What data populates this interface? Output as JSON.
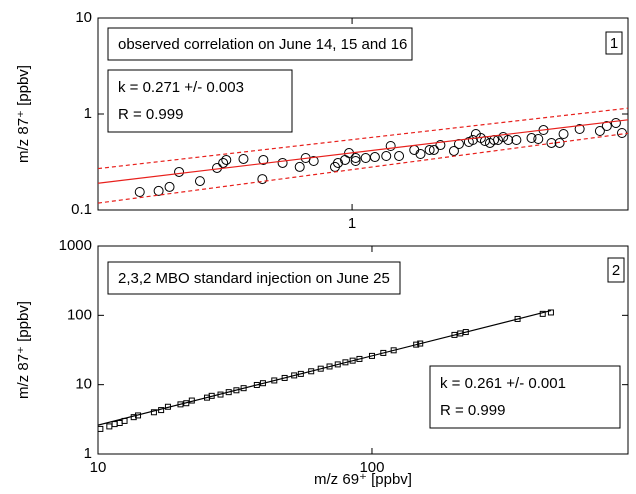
{
  "chart_data": [
    {
      "type": "scatter",
      "ylabel": "m/z 87⁺ [ppbv]",
      "note": "observed correlation on June 14, 15 and 16",
      "panel_label": "1",
      "fit_k": "k = 0.271 +/- 0.003",
      "fit_r": "R = 0.999",
      "xlog": true,
      "ylog": true,
      "xlim": [
        0.12,
        10
      ],
      "xticks": [
        1
      ],
      "ylim": [
        0.1,
        10
      ],
      "yticks": [
        0.1,
        1,
        10
      ],
      "series": [
        {
          "mode": "markers",
          "marker": "circle",
          "color": "#000000",
          "x": [
            0.17,
            0.199,
            0.218,
            0.236,
            0.281,
            0.324,
            0.341,
            0.35,
            0.404,
            0.473,
            0.477,
            0.56,
            0.646,
            0.679,
            0.726,
            0.867,
            0.889,
            0.943,
            0.975,
            1.03,
            1.03,
            1.12,
            1.21,
            1.33,
            1.38,
            1.48,
            1.68,
            1.77,
            1.91,
            1.98,
            2.09,
            2.34,
            2.44,
            2.65,
            2.74,
            2.81,
            2.93,
            3.03,
            3.16,
            3.27,
            3.38,
            3.53,
            3.68,
            3.94,
            4.47,
            4.73,
            4.94,
            5.28,
            5.65,
            5.84,
            6.68,
            7.91,
            8.38,
            9.04,
            9.51
          ],
          "values": [
            0.154,
            0.158,
            0.174,
            0.249,
            0.2,
            0.274,
            0.309,
            0.332,
            0.34,
            0.21,
            0.332,
            0.309,
            0.281,
            0.348,
            0.324,
            0.281,
            0.309,
            0.332,
            0.392,
            0.324,
            0.348,
            0.348,
            0.356,
            0.365,
            0.464,
            0.365,
            0.422,
            0.383,
            0.422,
            0.422,
            0.475,
            0.412,
            0.487,
            0.511,
            0.536,
            0.619,
            0.562,
            0.523,
            0.499,
            0.536,
            0.536,
            0.576,
            0.536,
            0.536,
            0.562,
            0.549,
            0.681,
            0.499,
            0.499,
            0.619,
            0.698,
            0.665,
            0.75,
            0.806,
            0.634
          ]
        },
        {
          "mode": "line",
          "style": "solid",
          "color": "#e8201c",
          "x": [
            0.12,
            10
          ],
          "values": [
            0.19,
            0.87
          ]
        },
        {
          "mode": "line",
          "style": "dashed",
          "color": "#e8201c",
          "x": [
            0.12,
            10
          ],
          "values": [
            0.27,
            1.15
          ]
        },
        {
          "mode": "line",
          "style": "dashed",
          "color": "#e8201c",
          "x": [
            0.12,
            10
          ],
          "values": [
            0.118,
            0.63
          ]
        }
      ]
    },
    {
      "type": "scatter",
      "ylabel": "m/z 87⁺ [ppbv]",
      "xlabel": "m/z 69⁺ [ppbv]",
      "note": "2,3,2 MBO standard injection on June 25",
      "panel_label": "2",
      "fit_k": "k = 0.261 +/- 0.001",
      "fit_r": "R = 0.999",
      "xlog": true,
      "ylog": true,
      "xlim": [
        10,
        860
      ],
      "xticks": [
        10,
        100
      ],
      "ylim": [
        1,
        1000
      ],
      "yticks": [
        1,
        10,
        100,
        1000
      ],
      "series": [
        {
          "mode": "markers",
          "marker": "square",
          "color": "#000000",
          "x": [
            10.2,
            11,
            11.5,
            12,
            12.5,
            13.5,
            14,
            16,
            17,
            18,
            20,
            21,
            22,
            25,
            26,
            28,
            30,
            32,
            34,
            38,
            40,
            44,
            48,
            52,
            55,
            60,
            65,
            70,
            75,
            80,
            85,
            90,
            100,
            110,
            120,
            145,
            150,
            200,
            210,
            220,
            340,
            420,
            450
          ],
          "values": [
            2.3,
            2.5,
            2.7,
            2.8,
            3.0,
            3.4,
            3.6,
            4.0,
            4.3,
            4.8,
            5.2,
            5.4,
            5.9,
            6.5,
            6.9,
            7.2,
            7.8,
            8.3,
            8.9,
            9.9,
            10.5,
            11.5,
            12.5,
            13.6,
            14.3,
            15.6,
            17,
            18.3,
            19.6,
            21,
            22.2,
            23.5,
            26,
            28.7,
            31.3,
            37.8,
            39.2,
            52.2,
            54.8,
            57.4,
            88.7,
            105,
            110
          ]
        },
        {
          "mode": "line",
          "style": "solid",
          "color": "#000000",
          "x": [
            10,
            450
          ],
          "values": [
            2.61,
            117
          ]
        }
      ]
    }
  ]
}
